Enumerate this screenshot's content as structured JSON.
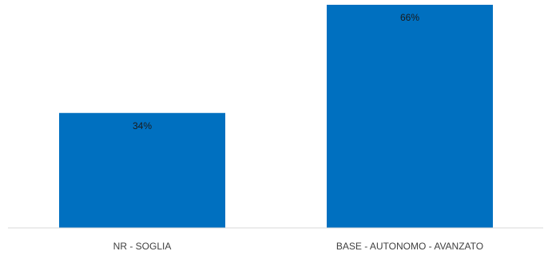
{
  "chart_data": {
    "type": "bar",
    "categories": [
      "NR - SOGLIA",
      "BASE - AUTONOMO - AVANZATO"
    ],
    "values": [
      34,
      66
    ],
    "value_labels": [
      "34%",
      "66%"
    ],
    "ylim": [
      0,
      66
    ],
    "grid": false,
    "legend": "none",
    "colors": {
      "bar": "#0070C0",
      "axis": "#d9d9d9"
    }
  }
}
